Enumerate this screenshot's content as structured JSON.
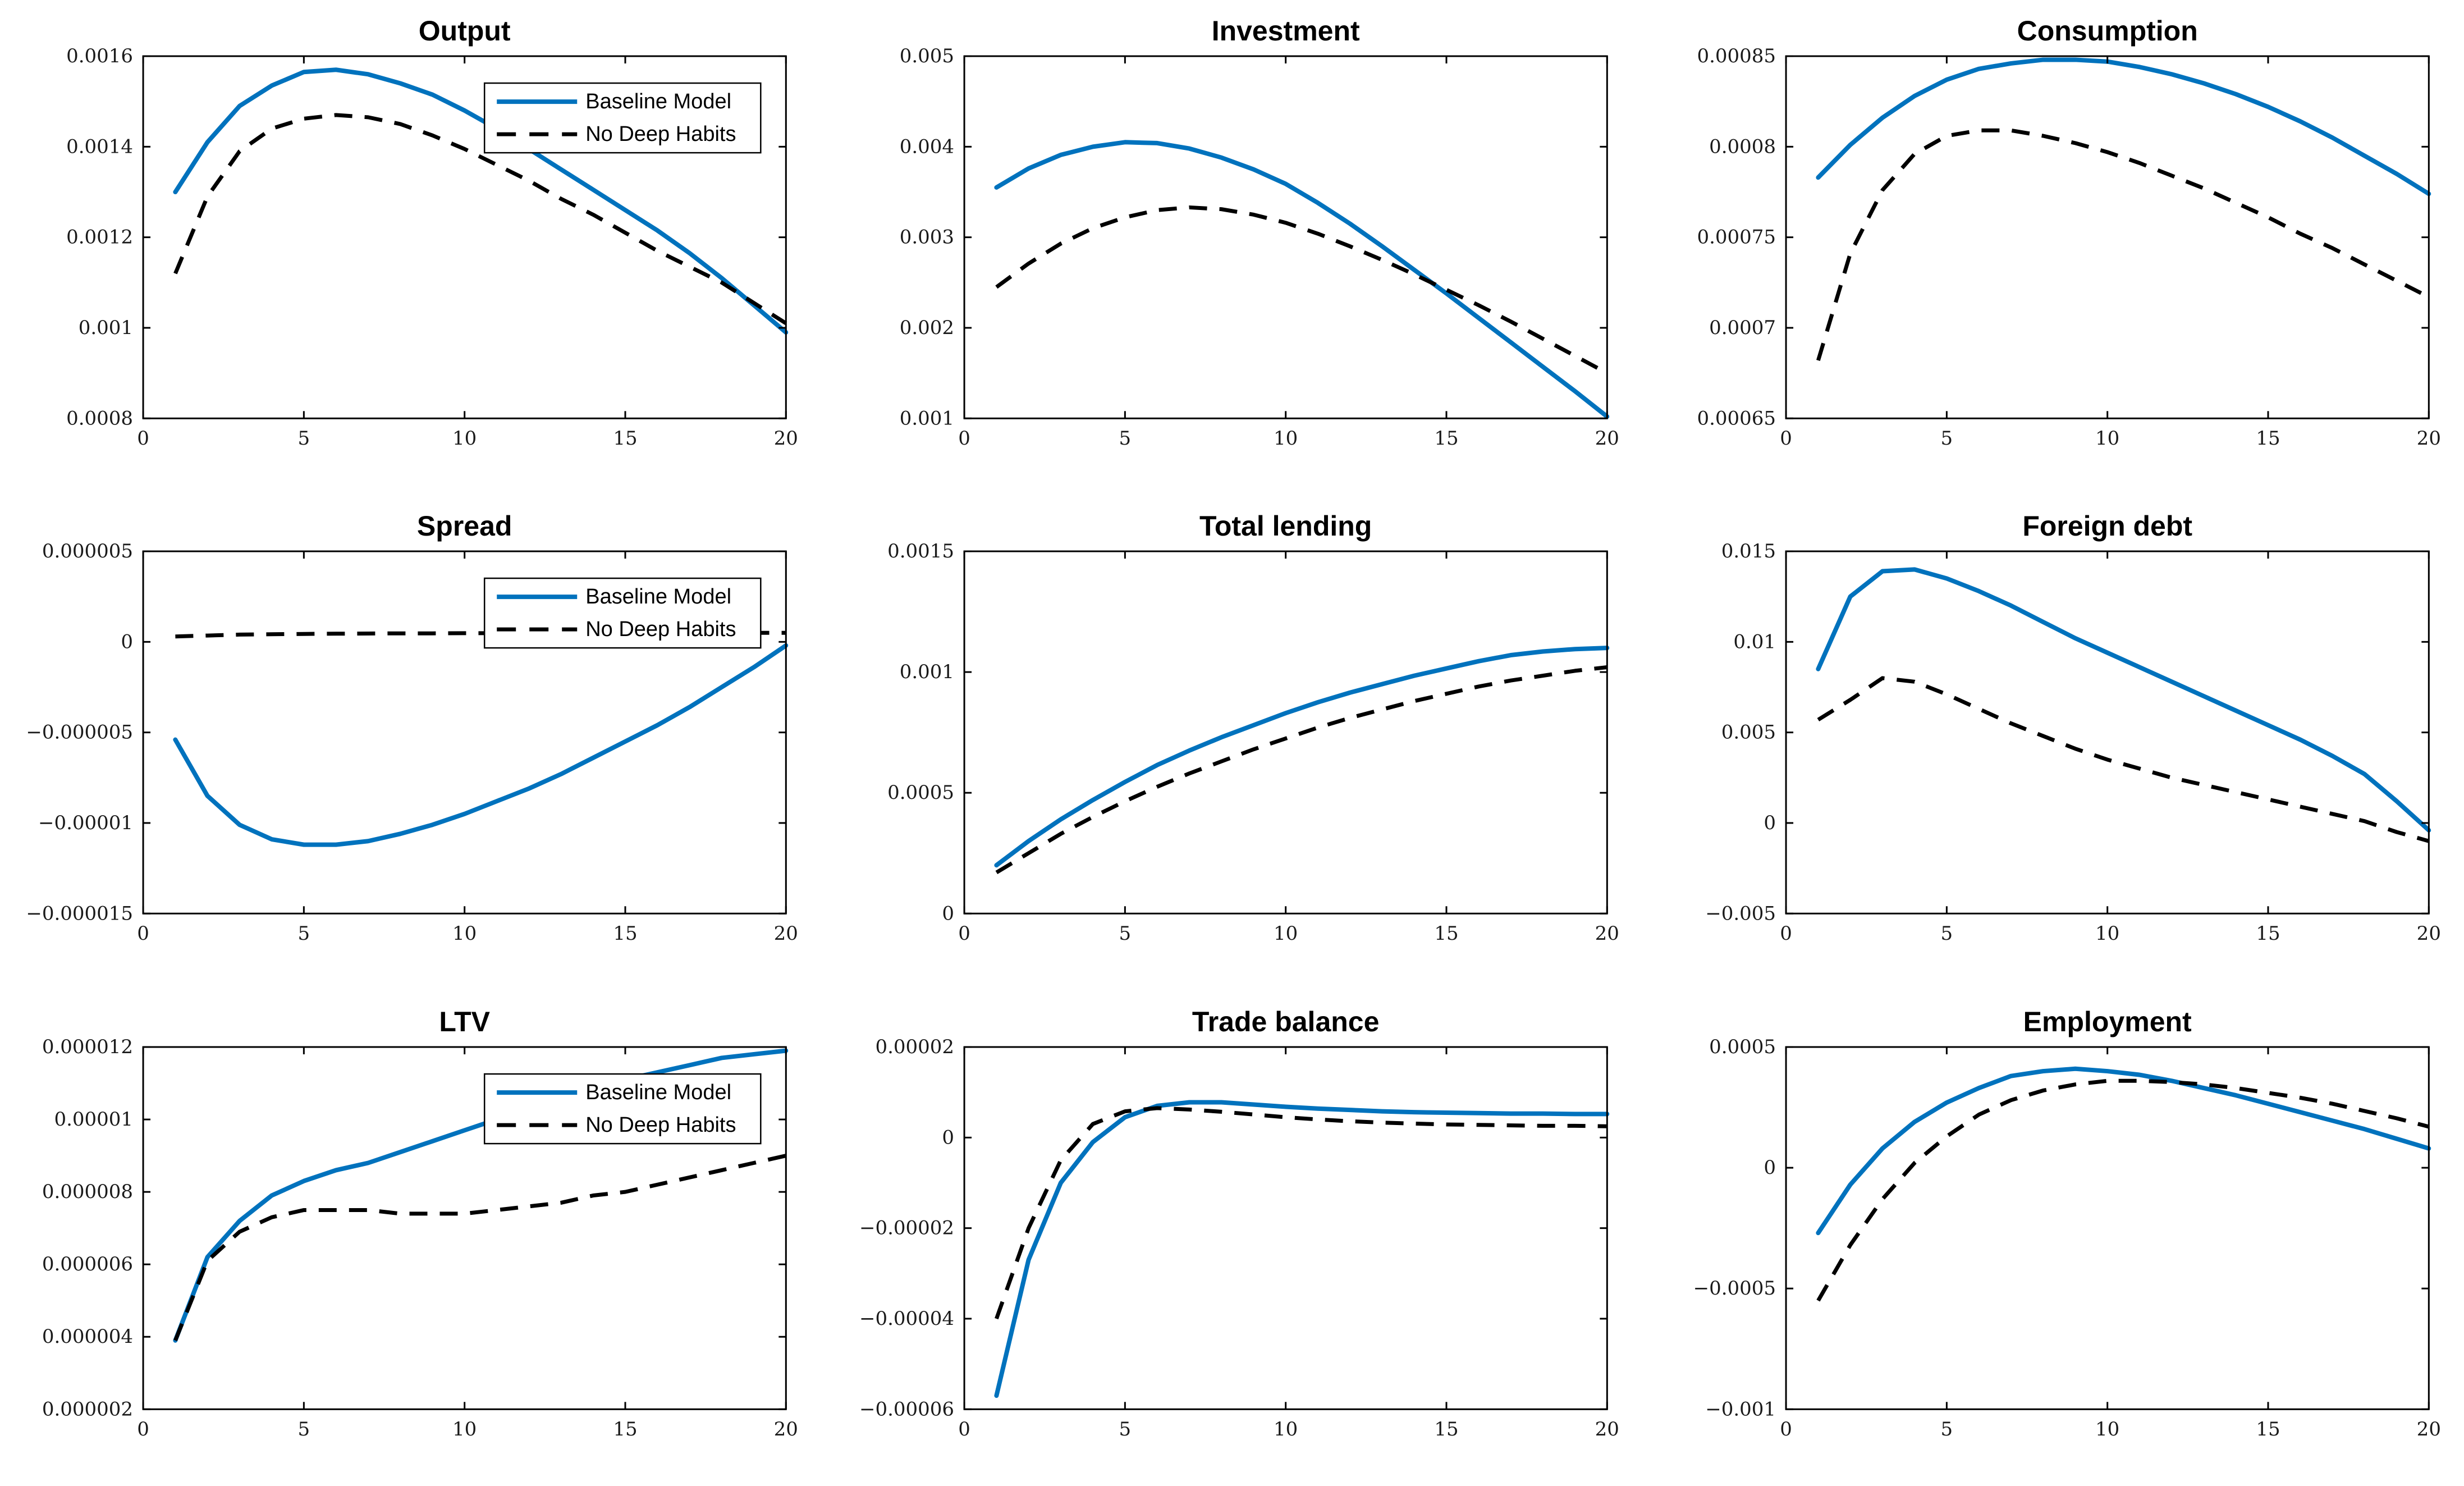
{
  "figure": {
    "background": "#ffffff",
    "axis_color": "#000000",
    "tick_label_color": "#1a1a1a",
    "grid": {
      "rows": 3,
      "cols": 3
    },
    "legend_entries": [
      {
        "label": "Baseline Model",
        "style": "solid",
        "color": "#0072BD"
      },
      {
        "label": "No Deep Habits",
        "style": "dashed",
        "color": "#000000"
      }
    ]
  },
  "chart_data": [
    {
      "type": "line",
      "slug": "output",
      "title": "Output",
      "xlim": [
        0,
        20
      ],
      "ylim": [
        0.0008,
        0.0016
      ],
      "xticks": {
        "values": [
          0,
          5,
          10,
          15,
          20
        ],
        "labels": [
          "0",
          "5",
          "10",
          "15",
          "20"
        ]
      },
      "yticks": {
        "values": [
          0.0008,
          0.001,
          0.0012,
          0.0014,
          0.0016
        ],
        "labels": [
          "0.0008",
          "0.001",
          "0.0012",
          "0.0014",
          "0.0016"
        ]
      },
      "legend": true,
      "legend_position": "top-right",
      "x": [
        1,
        2,
        3,
        4,
        5,
        6,
        7,
        8,
        9,
        10,
        11,
        12,
        13,
        14,
        15,
        16,
        17,
        18,
        19,
        20
      ],
      "series": [
        {
          "name": "Baseline Model",
          "style": "solid",
          "color": "#0072BD",
          "values": [
            0.0013,
            0.00141,
            0.00149,
            0.001535,
            0.001565,
            0.00157,
            0.00156,
            0.00154,
            0.001515,
            0.00148,
            0.00144,
            0.001395,
            0.00135,
            0.001305,
            0.00126,
            0.001215,
            0.001165,
            0.00111,
            0.00105,
            0.00099
          ]
        },
        {
          "name": "No Deep Habits",
          "style": "dashed",
          "color": "#000000",
          "values": [
            0.00112,
            0.00129,
            0.00139,
            0.00144,
            0.001462,
            0.00147,
            0.001465,
            0.00145,
            0.001425,
            0.001395,
            0.00136,
            0.001325,
            0.001285,
            0.00125,
            0.00121,
            0.00117,
            0.001135,
            0.0011,
            0.001055,
            0.00101
          ]
        }
      ]
    },
    {
      "type": "line",
      "slug": "investment",
      "title": "Investment",
      "xlim": [
        0,
        20
      ],
      "ylim": [
        0.001,
        0.005
      ],
      "xticks": {
        "values": [
          0,
          5,
          10,
          15,
          20
        ],
        "labels": [
          "0",
          "5",
          "10",
          "15",
          "20"
        ]
      },
      "yticks": {
        "values": [
          0.001,
          0.002,
          0.003,
          0.004,
          0.005
        ],
        "labels": [
          "0.001",
          "0.002",
          "0.003",
          "0.004",
          "0.005"
        ]
      },
      "legend": false,
      "legend_position": "top-right",
      "x": [
        1,
        2,
        3,
        4,
        5,
        6,
        7,
        8,
        9,
        10,
        11,
        12,
        13,
        14,
        15,
        16,
        17,
        18,
        19,
        20
      ],
      "series": [
        {
          "name": "Baseline Model",
          "style": "solid",
          "color": "#0072BD",
          "values": [
            0.00355,
            0.00376,
            0.00391,
            0.004,
            0.00405,
            0.00404,
            0.00398,
            0.00388,
            0.00375,
            0.00359,
            0.00338,
            0.00315,
            0.0029,
            0.00264,
            0.00238,
            0.00211,
            0.00184,
            0.00157,
            0.0013,
            0.00102
          ]
        },
        {
          "name": "No Deep Habits",
          "style": "dashed",
          "color": "#000000",
          "values": [
            0.00245,
            0.00271,
            0.00293,
            0.0031,
            0.00322,
            0.0033,
            0.00333,
            0.00331,
            0.00325,
            0.00316,
            0.00304,
            0.0029,
            0.00275,
            0.00259,
            0.00242,
            0.00225,
            0.00207,
            0.00188,
            0.00169,
            0.0015
          ]
        }
      ]
    },
    {
      "type": "line",
      "slug": "consumption",
      "title": "Consumption",
      "xlim": [
        0,
        20
      ],
      "ylim": [
        0.00065,
        0.00085
      ],
      "xticks": {
        "values": [
          0,
          5,
          10,
          15,
          20
        ],
        "labels": [
          "0",
          "5",
          "10",
          "15",
          "20"
        ]
      },
      "yticks": {
        "values": [
          0.00065,
          0.0007,
          0.00075,
          0.0008,
          0.00085
        ],
        "labels": [
          "0.00065",
          "0.0007",
          "0.00075",
          "0.0008",
          "0.00085"
        ]
      },
      "legend": false,
      "legend_position": "top-right",
      "x": [
        1,
        2,
        3,
        4,
        5,
        6,
        7,
        8,
        9,
        10,
        11,
        12,
        13,
        14,
        15,
        16,
        17,
        18,
        19,
        20
      ],
      "series": [
        {
          "name": "Baseline Model",
          "style": "solid",
          "color": "#0072BD",
          "values": [
            0.000783,
            0.000801,
            0.000816,
            0.000828,
            0.000837,
            0.000843,
            0.000846,
            0.000848,
            0.000848,
            0.000847,
            0.000844,
            0.00084,
            0.000835,
            0.000829,
            0.000822,
            0.000814,
            0.000805,
            0.000795,
            0.000785,
            0.000774
          ]
        },
        {
          "name": "No Deep Habits",
          "style": "dashed",
          "color": "#000000",
          "values": [
            0.000682,
            0.000741,
            0.000776,
            0.000796,
            0.000806,
            0.000809,
            0.000809,
            0.000806,
            0.000802,
            0.000797,
            0.000791,
            0.000784,
            0.000777,
            0.000769,
            0.000761,
            0.000752,
            0.000744,
            0.000735,
            0.000726,
            0.000717
          ]
        }
      ]
    },
    {
      "type": "line",
      "slug": "spread",
      "title": "Spread",
      "xlim": [
        0,
        20
      ],
      "ylim": [
        -1.5e-05,
        5e-06
      ],
      "xticks": {
        "values": [
          0,
          5,
          10,
          15,
          20
        ],
        "labels": [
          "0",
          "5",
          "10",
          "15",
          "20"
        ]
      },
      "yticks": {
        "values": [
          -1.5e-05,
          -1e-05,
          -5e-06,
          0,
          5e-06
        ],
        "labels": [
          "−0.000015",
          "−0.00001",
          "−0.000005",
          "0",
          "0.000005"
        ]
      },
      "legend": true,
      "legend_position": "top-right",
      "x": [
        1,
        2,
        3,
        4,
        5,
        6,
        7,
        8,
        9,
        10,
        11,
        12,
        13,
        14,
        15,
        16,
        17,
        18,
        19,
        20
      ],
      "series": [
        {
          "name": "Baseline Model",
          "style": "solid",
          "color": "#0072BD",
          "values": [
            -5.4e-06,
            -8.5e-06,
            -1.01e-05,
            -1.09e-05,
            -1.12e-05,
            -1.12e-05,
            -1.1e-05,
            -1.06e-05,
            -1.01e-05,
            -9.5e-06,
            -8.8e-06,
            -8.1e-06,
            -7.3e-06,
            -6.4e-06,
            -5.5e-06,
            -4.6e-06,
            -3.6e-06,
            -2.5e-06,
            -1.4e-06,
            -2e-07
          ]
        },
        {
          "name": "No Deep Habits",
          "style": "dashed",
          "color": "#000000",
          "values": [
            3e-07,
            3.5e-07,
            4e-07,
            4.2e-07,
            4.4e-07,
            4.5e-07,
            4.6e-07,
            4.7e-07,
            4.7e-07,
            4.8e-07,
            4.8e-07,
            4.9e-07,
            4.9e-07,
            5e-07,
            5e-07,
            5e-07,
            5e-07,
            5e-07,
            5e-07,
            5e-07
          ]
        }
      ]
    },
    {
      "type": "line",
      "slug": "total-lending",
      "title": "Total lending",
      "xlim": [
        0,
        20
      ],
      "ylim": [
        0,
        0.0015
      ],
      "xticks": {
        "values": [
          0,
          5,
          10,
          15,
          20
        ],
        "labels": [
          "0",
          "5",
          "10",
          "15",
          "20"
        ]
      },
      "yticks": {
        "values": [
          0,
          0.0005,
          0.001,
          0.0015
        ],
        "labels": [
          "0",
          "0.0005",
          "0.001",
          "0.0015"
        ]
      },
      "legend": false,
      "legend_position": "top-right",
      "x": [
        1,
        2,
        3,
        4,
        5,
        6,
        7,
        8,
        9,
        10,
        11,
        12,
        13,
        14,
        15,
        16,
        17,
        18,
        19,
        20
      ],
      "series": [
        {
          "name": "Baseline Model",
          "style": "solid",
          "color": "#0072BD",
          "values": [
            0.0002,
            0.0003,
            0.00039,
            0.00047,
            0.000545,
            0.000615,
            0.000675,
            0.00073,
            0.00078,
            0.00083,
            0.000875,
            0.000915,
            0.00095,
            0.000985,
            0.001015,
            0.001045,
            0.00107,
            0.001085,
            0.001095,
            0.0011
          ]
        },
        {
          "name": "No Deep Habits",
          "style": "dashed",
          "color": "#000000",
          "values": [
            0.00017,
            0.00025,
            0.00033,
            0.0004,
            0.000465,
            0.000525,
            0.00058,
            0.00063,
            0.00068,
            0.000725,
            0.00077,
            0.00081,
            0.000845,
            0.00088,
            0.00091,
            0.00094,
            0.000965,
            0.000985,
            0.001005,
            0.00102
          ]
        }
      ]
    },
    {
      "type": "line",
      "slug": "foreign-debt",
      "title": "Foreign debt",
      "xlim": [
        0,
        20
      ],
      "ylim": [
        -0.005,
        0.015
      ],
      "xticks": {
        "values": [
          0,
          5,
          10,
          15,
          20
        ],
        "labels": [
          "0",
          "5",
          "10",
          "15",
          "20"
        ]
      },
      "yticks": {
        "values": [
          -0.005,
          0,
          0.005,
          0.01,
          0.015
        ],
        "labels": [
          "−0.005",
          "0",
          "0.005",
          "0.01",
          "0.015"
        ]
      },
      "legend": false,
      "legend_position": "top-right",
      "x": [
        1,
        2,
        3,
        4,
        5,
        6,
        7,
        8,
        9,
        10,
        11,
        12,
        13,
        14,
        15,
        16,
        17,
        18,
        19,
        20
      ],
      "series": [
        {
          "name": "Baseline Model",
          "style": "solid",
          "color": "#0072BD",
          "values": [
            0.0085,
            0.0125,
            0.0139,
            0.014,
            0.0135,
            0.0128,
            0.012,
            0.0111,
            0.0102,
            0.0094,
            0.0086,
            0.0078,
            0.007,
            0.0062,
            0.0054,
            0.0046,
            0.0037,
            0.0027,
            0.0012,
            -0.0004
          ]
        },
        {
          "name": "No Deep Habits",
          "style": "dashed",
          "color": "#000000",
          "values": [
            0.0057,
            0.0068,
            0.008,
            0.0078,
            0.0071,
            0.0063,
            0.0055,
            0.0048,
            0.0041,
            0.0035,
            0.003,
            0.0025,
            0.0021,
            0.0017,
            0.0013,
            0.0009,
            0.0005,
            0.0001,
            -0.0005,
            -0.001
          ]
        }
      ]
    },
    {
      "type": "line",
      "slug": "ltv",
      "title": "LTV",
      "xlim": [
        0,
        20
      ],
      "ylim": [
        2e-06,
        1.2e-05
      ],
      "xticks": {
        "values": [
          0,
          5,
          10,
          15,
          20
        ],
        "labels": [
          "0",
          "5",
          "10",
          "15",
          "20"
        ]
      },
      "yticks": {
        "values": [
          2e-06,
          4e-06,
          6e-06,
          8e-06,
          1e-05,
          1.2e-05
        ],
        "labels": [
          "0.000002",
          "0.000004",
          "0.000006",
          "0.000008",
          "0.00001",
          "0.000012"
        ]
      },
      "legend": true,
      "legend_position": "top-right",
      "x": [
        1,
        2,
        3,
        4,
        5,
        6,
        7,
        8,
        9,
        10,
        11,
        12,
        13,
        14,
        15,
        16,
        17,
        18,
        19,
        20
      ],
      "series": [
        {
          "name": "Baseline Model",
          "style": "solid",
          "color": "#0072BD",
          "values": [
            3.9e-06,
            6.2e-06,
            7.2e-06,
            7.9e-06,
            8.3e-06,
            8.6e-06,
            8.8e-06,
            9.1e-06,
            9.4e-06,
            9.7e-06,
            1e-05,
            1.03e-05,
            1.06e-05,
            1.09e-05,
            1.11e-05,
            1.13e-05,
            1.15e-05,
            1.17e-05,
            1.18e-05,
            1.19e-05
          ]
        },
        {
          "name": "No Deep Habits",
          "style": "dashed",
          "color": "#000000",
          "values": [
            3.9e-06,
            6.1e-06,
            6.9e-06,
            7.3e-06,
            7.5e-06,
            7.5e-06,
            7.5e-06,
            7.4e-06,
            7.4e-06,
            7.4e-06,
            7.5e-06,
            7.6e-06,
            7.7e-06,
            7.9e-06,
            8e-06,
            8.2e-06,
            8.4e-06,
            8.6e-06,
            8.8e-06,
            9e-06
          ]
        }
      ]
    },
    {
      "type": "line",
      "slug": "trade-balance",
      "title": "Trade balance",
      "xlim": [
        0,
        20
      ],
      "ylim": [
        -6e-05,
        2e-05
      ],
      "xticks": {
        "values": [
          0,
          5,
          10,
          15,
          20
        ],
        "labels": [
          "0",
          "5",
          "10",
          "15",
          "20"
        ]
      },
      "yticks": {
        "values": [
          -6e-05,
          -4e-05,
          -2e-05,
          0,
          2e-05
        ],
        "labels": [
          "−0.00006",
          "−0.00004",
          "−0.00002",
          "0",
          "0.00002"
        ]
      },
      "legend": false,
      "legend_position": "top-right",
      "x": [
        1,
        2,
        3,
        4,
        5,
        6,
        7,
        8,
        9,
        10,
        11,
        12,
        13,
        14,
        15,
        16,
        17,
        18,
        19,
        20
      ],
      "series": [
        {
          "name": "Baseline Model",
          "style": "solid",
          "color": "#0072BD",
          "values": [
            -5.7e-05,
            -2.7e-05,
            -1e-05,
            -1e-06,
            4.5e-06,
            7e-06,
            7.8e-06,
            7.8e-06,
            7.3e-06,
            6.8e-06,
            6.4e-06,
            6.1e-06,
            5.8e-06,
            5.6e-06,
            5.5e-06,
            5.4e-06,
            5.3e-06,
            5.3e-06,
            5.2e-06,
            5.2e-06
          ]
        },
        {
          "name": "No Deep Habits",
          "style": "dashed",
          "color": "#000000",
          "values": [
            -4e-05,
            -2e-05,
            -5e-06,
            3e-06,
            5.8e-06,
            6.5e-06,
            6.2e-06,
            5.7e-06,
            5.1e-06,
            4.5e-06,
            4e-06,
            3.6e-06,
            3.3e-06,
            3.1e-06,
            2.9e-06,
            2.8e-06,
            2.7e-06,
            2.6e-06,
            2.6e-06,
            2.5e-06
          ]
        }
      ]
    },
    {
      "type": "line",
      "slug": "employment",
      "title": "Employment",
      "xlim": [
        0,
        20
      ],
      "ylim": [
        -0.001,
        0.0005
      ],
      "xticks": {
        "values": [
          0,
          5,
          10,
          15,
          20
        ],
        "labels": [
          "0",
          "5",
          "10",
          "15",
          "20"
        ]
      },
      "yticks": {
        "values": [
          -0.001,
          -0.0005,
          0,
          0.0005
        ],
        "labels": [
          "−0.001",
          "−0.0005",
          "0",
          "0.0005"
        ]
      },
      "legend": false,
      "legend_position": "top-right",
      "x": [
        1,
        2,
        3,
        4,
        5,
        6,
        7,
        8,
        9,
        10,
        11,
        12,
        13,
        14,
        15,
        16,
        17,
        18,
        19,
        20
      ],
      "series": [
        {
          "name": "Baseline Model",
          "style": "solid",
          "color": "#0072BD",
          "values": [
            -0.00027,
            -7e-05,
            8e-05,
            0.00019,
            0.00027,
            0.00033,
            0.00038,
            0.0004,
            0.00041,
            0.0004,
            0.000385,
            0.00036,
            0.00033,
            0.0003,
            0.000265,
            0.00023,
            0.000195,
            0.00016,
            0.00012,
            8e-05
          ]
        },
        {
          "name": "No Deep Habits",
          "style": "dashed",
          "color": "#000000",
          "values": [
            -0.00055,
            -0.00032,
            -0.00013,
            2e-05,
            0.00013,
            0.00022,
            0.00028,
            0.00032,
            0.000345,
            0.00036,
            0.00036,
            0.000355,
            0.000345,
            0.00033,
            0.00031,
            0.00029,
            0.000265,
            0.000235,
            0.000205,
            0.00017
          ]
        }
      ]
    }
  ]
}
